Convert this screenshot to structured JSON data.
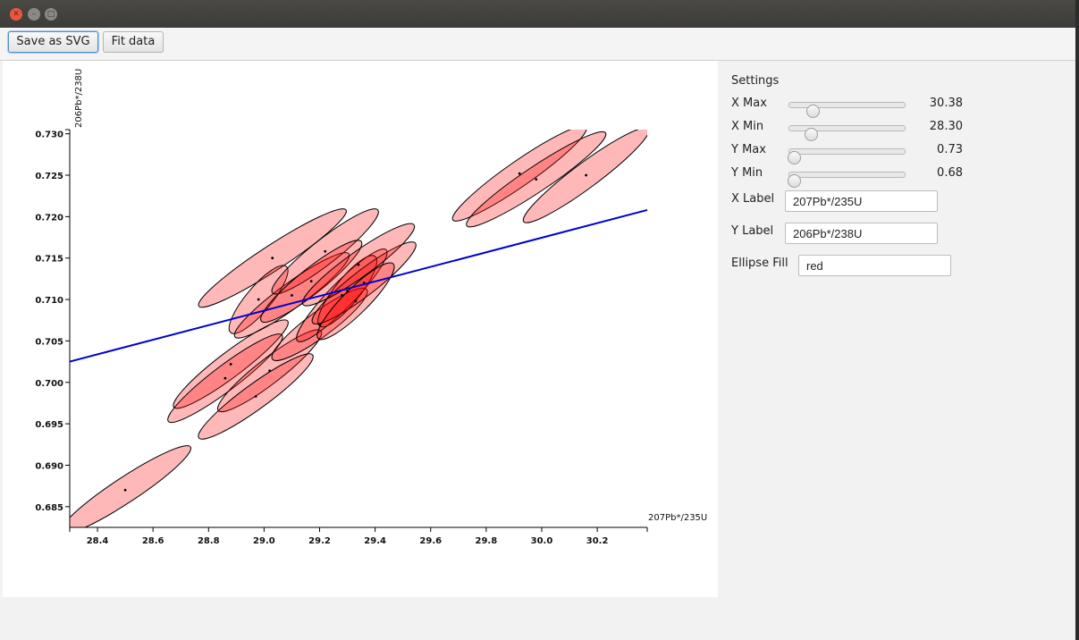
{
  "toolbar": {
    "save_label": "Save as SVG",
    "fit_label": "Fit data"
  },
  "settings": {
    "title": "Settings",
    "sliders": [
      {
        "label": "X Max",
        "value": "30.38",
        "fraction": 0.18
      },
      {
        "label": "X Min",
        "value": "28.30",
        "fraction": 0.16
      },
      {
        "label": "Y Max",
        "value": "0.73",
        "fraction": 0.0
      },
      {
        "label": "Y Min",
        "value": "0.68",
        "fraction": 0.0
      }
    ],
    "x_label_caption": "X Label",
    "x_label_value": "207Pb*/235U",
    "y_label_caption": "Y Label",
    "y_label_value": "206Pb*/238U",
    "fill_caption": "Ellipse Fill",
    "fill_value": "red"
  },
  "chart_data": {
    "type": "scatter",
    "title": "",
    "xlabel": "207Pb*/235U",
    "ylabel": "206Pb*/238U",
    "xlim": [
      28.3,
      30.38
    ],
    "ylim": [
      0.6825,
      0.7305
    ],
    "xticks": [
      "28.4",
      "28.6",
      "28.8",
      "29.0",
      "29.2",
      "29.4",
      "29.6",
      "29.8",
      "30.0",
      "30.2"
    ],
    "yticks": [
      "0.685",
      "0.690",
      "0.695",
      "0.700",
      "0.705",
      "0.710",
      "0.715",
      "0.720",
      "0.725",
      "0.730"
    ],
    "ellipse_fill": "#ff0000",
    "ellipse_fill_opacity": 0.28,
    "ellipses": [
      {
        "x": 28.5,
        "y": 0.687,
        "dx": 0.235,
        "dy": 0.0052
      },
      {
        "x": 28.88,
        "y": 0.7022,
        "dx": 0.205,
        "dy": 0.0052
      },
      {
        "x": 28.86,
        "y": 0.7005,
        "dx": 0.205,
        "dy": 0.0052
      },
      {
        "x": 29.02,
        "y": 0.7014,
        "dx": 0.185,
        "dy": 0.0048
      },
      {
        "x": 28.97,
        "y": 0.6983,
        "dx": 0.205,
        "dy": 0.005
      },
      {
        "x": 29.03,
        "y": 0.715,
        "dx": 0.265,
        "dy": 0.0058
      },
      {
        "x": 28.98,
        "y": 0.71,
        "dx": 0.1,
        "dy": 0.004
      },
      {
        "x": 29.1,
        "y": 0.7105,
        "dx": 0.205,
        "dy": 0.005
      },
      {
        "x": 29.22,
        "y": 0.7158,
        "dx": 0.19,
        "dy": 0.005
      },
      {
        "x": 29.17,
        "y": 0.7122,
        "dx": 0.18,
        "dy": 0.0048
      },
      {
        "x": 29.2,
        "y": 0.707,
        "dx": 0.17,
        "dy": 0.0042
      },
      {
        "x": 29.28,
        "y": 0.7105,
        "dx": 0.16,
        "dy": 0.0055
      },
      {
        "x": 29.3,
        "y": 0.711,
        "dx": 0.1,
        "dy": 0.0042
      },
      {
        "x": 29.36,
        "y": 0.712,
        "dx": 0.185,
        "dy": 0.0048
      },
      {
        "x": 29.34,
        "y": 0.7142,
        "dx": 0.2,
        "dy": 0.0048
      },
      {
        "x": 29.33,
        "y": 0.7098,
        "dx": 0.135,
        "dy": 0.0045
      },
      {
        "x": 29.92,
        "y": 0.7252,
        "dx": 0.24,
        "dy": 0.0056
      },
      {
        "x": 29.98,
        "y": 0.7245,
        "dx": 0.25,
        "dy": 0.0056
      },
      {
        "x": 30.16,
        "y": 0.725,
        "dx": 0.225,
        "dy": 0.0056
      }
    ],
    "fit_line": {
      "color": "#0000cc",
      "x": [
        28.3,
        30.38
      ],
      "y": [
        0.7025,
        0.7208
      ]
    }
  }
}
